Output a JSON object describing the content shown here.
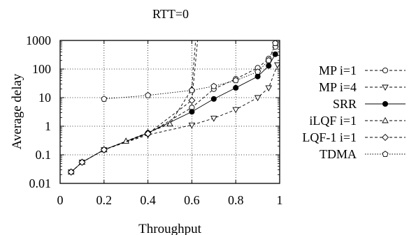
{
  "chart_data": {
    "type": "line",
    "title": "RTT=0",
    "xlabel": "Throughput",
    "ylabel": "Average delay",
    "xscale": "linear",
    "yscale": "log",
    "xlim": [
      0,
      1
    ],
    "ylim": [
      0.01,
      1000
    ],
    "xticks": [
      0,
      0.2,
      0.4,
      0.6,
      0.8,
      1
    ],
    "xtick_labels": [
      "0",
      "0.2",
      "0.4",
      "0.6",
      "0.8",
      "1"
    ],
    "yticks": [
      0.01,
      0.1,
      1,
      10,
      100,
      1000
    ],
    "ytick_labels": [
      "0.01",
      "0.1",
      "1",
      "10",
      "100",
      "1000"
    ],
    "grid": true,
    "legend_position": "right",
    "series": [
      {
        "name": "MP i=1",
        "style": "dashed",
        "marker": "open-circle",
        "color": "#000000",
        "x": [
          0.05,
          0.1,
          0.2,
          0.4,
          0.6,
          0.7,
          0.8,
          0.9,
          0.95,
          0.98
        ],
        "y": [
          0.025,
          0.055,
          0.15,
          0.55,
          4.5,
          20,
          45,
          110,
          230,
          600
        ]
      },
      {
        "name": "MP i=4",
        "style": "dashed",
        "marker": "open-triangle-down",
        "color": "#000000",
        "x": [
          0.05,
          0.1,
          0.2,
          0.4,
          0.6,
          0.7,
          0.8,
          0.9,
          0.95,
          0.99
        ],
        "y": [
          0.025,
          0.055,
          0.15,
          0.5,
          1.1,
          1.9,
          3.8,
          10,
          22,
          140
        ]
      },
      {
        "name": "SRR",
        "style": "solid",
        "marker": "filled-circle",
        "color": "#000000",
        "x": [
          0.05,
          0.1,
          0.2,
          0.4,
          0.6,
          0.7,
          0.8,
          0.9,
          0.95,
          0.98
        ],
        "y": [
          0.025,
          0.055,
          0.15,
          0.58,
          3.2,
          9,
          22,
          55,
          130,
          330
        ]
      },
      {
        "name": "iLQF i=1",
        "style": "dashed",
        "marker": "open-triangle-up",
        "color": "#000000",
        "x": [
          0.05,
          0.1,
          0.2,
          0.3,
          0.4,
          0.5,
          0.6,
          0.62
        ],
        "y": [
          0.025,
          0.055,
          0.15,
          0.3,
          0.6,
          1.2,
          20,
          2000
        ]
      },
      {
        "name": "LQF-1 i=1",
        "style": "dashed",
        "marker": "open-diamond",
        "color": "#000000",
        "x": [
          0.05,
          0.1,
          0.2,
          0.4,
          0.6,
          0.63
        ],
        "y": [
          0.025,
          0.055,
          0.15,
          0.55,
          8,
          2000
        ]
      },
      {
        "name": "TDMA",
        "style": "dotted",
        "marker": "open-pentagon",
        "color": "#000000",
        "x": [
          0.2,
          0.4,
          0.6,
          0.7,
          0.8,
          0.9,
          0.95,
          0.98
        ],
        "y": [
          9,
          12,
          18,
          25,
          40,
          80,
          200,
          800
        ]
      }
    ]
  }
}
